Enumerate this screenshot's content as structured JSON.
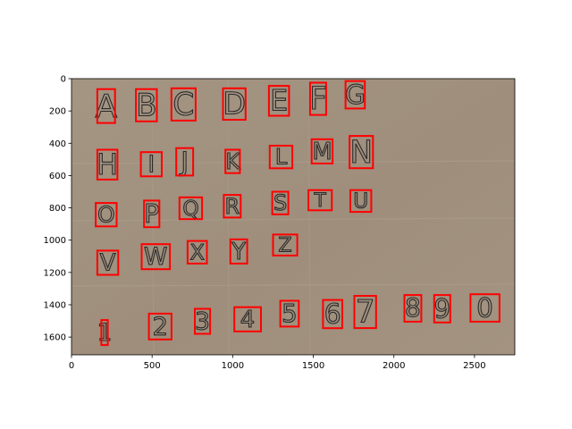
{
  "axes": {
    "x_ticks": [
      "0",
      "500",
      "1000",
      "1500",
      "2000",
      "2500"
    ],
    "y_ticks": [
      "0",
      "200",
      "400",
      "600",
      "800",
      "1000",
      "1200",
      "1400",
      "1600"
    ],
    "xlim": [
      0,
      2750
    ],
    "ylim": [
      1710,
      0
    ]
  },
  "colors": {
    "box": "#ff0000",
    "paper": "#a08f7d",
    "ink": "#2a2a2a"
  },
  "detections": [
    {
      "char": "A",
      "x0": 160,
      "y0": 65,
      "x1": 270,
      "y1": 275
    },
    {
      "char": "B",
      "x0": 400,
      "y0": 65,
      "x1": 530,
      "y1": 265
    },
    {
      "char": "C",
      "x0": 620,
      "y0": 60,
      "x1": 770,
      "y1": 260
    },
    {
      "char": "D",
      "x0": 940,
      "y0": 60,
      "x1": 1080,
      "y1": 255
    },
    {
      "char": "E",
      "x0": 1225,
      "y0": 45,
      "x1": 1350,
      "y1": 230
    },
    {
      "char": "F",
      "x0": 1480,
      "y0": 25,
      "x1": 1580,
      "y1": 225
    },
    {
      "char": "G",
      "x0": 1700,
      "y0": 15,
      "x1": 1820,
      "y1": 185
    },
    {
      "char": "H",
      "x0": 160,
      "y0": 440,
      "x1": 285,
      "y1": 625
    },
    {
      "char": "I",
      "x0": 430,
      "y0": 455,
      "x1": 560,
      "y1": 605
    },
    {
      "char": "J",
      "x0": 650,
      "y0": 430,
      "x1": 755,
      "y1": 600
    },
    {
      "char": "K",
      "x0": 955,
      "y0": 440,
      "x1": 1045,
      "y1": 585
    },
    {
      "char": "L",
      "x0": 1230,
      "y0": 415,
      "x1": 1370,
      "y1": 555
    },
    {
      "char": "M",
      "x0": 1490,
      "y0": 375,
      "x1": 1620,
      "y1": 525
    },
    {
      "char": "N",
      "x0": 1725,
      "y0": 355,
      "x1": 1870,
      "y1": 555
    },
    {
      "char": "O",
      "x0": 150,
      "y0": 770,
      "x1": 280,
      "y1": 915
    },
    {
      "char": "P",
      "x0": 450,
      "y0": 755,
      "x1": 545,
      "y1": 920
    },
    {
      "char": "Q",
      "x0": 670,
      "y0": 735,
      "x1": 810,
      "y1": 870
    },
    {
      "char": "R",
      "x0": 945,
      "y0": 720,
      "x1": 1050,
      "y1": 860
    },
    {
      "char": "S",
      "x0": 1245,
      "y0": 700,
      "x1": 1345,
      "y1": 840
    },
    {
      "char": "T",
      "x0": 1470,
      "y0": 690,
      "x1": 1615,
      "y1": 815
    },
    {
      "char": "U",
      "x0": 1730,
      "y0": 690,
      "x1": 1860,
      "y1": 825
    },
    {
      "char": "V",
      "x0": 160,
      "y0": 1065,
      "x1": 290,
      "y1": 1215
    },
    {
      "char": "W",
      "x0": 435,
      "y0": 1025,
      "x1": 610,
      "y1": 1180
    },
    {
      "char": "X",
      "x0": 720,
      "y0": 1005,
      "x1": 840,
      "y1": 1145
    },
    {
      "char": "Y",
      "x0": 985,
      "y0": 995,
      "x1": 1090,
      "y1": 1145
    },
    {
      "char": "Z",
      "x0": 1250,
      "y0": 965,
      "x1": 1400,
      "y1": 1095
    },
    {
      "char": "1",
      "x0": 185,
      "y0": 1495,
      "x1": 225,
      "y1": 1650
    },
    {
      "char": "2",
      "x0": 480,
      "y0": 1455,
      "x1": 620,
      "y1": 1615
    },
    {
      "char": "3",
      "x0": 765,
      "y0": 1425,
      "x1": 860,
      "y1": 1580
    },
    {
      "char": "4",
      "x0": 1010,
      "y0": 1415,
      "x1": 1175,
      "y1": 1565
    },
    {
      "char": "5",
      "x0": 1295,
      "y0": 1375,
      "x1": 1410,
      "y1": 1535
    },
    {
      "char": "6",
      "x0": 1560,
      "y0": 1370,
      "x1": 1680,
      "y1": 1545
    },
    {
      "char": "7",
      "x0": 1755,
      "y0": 1345,
      "x1": 1890,
      "y1": 1545
    },
    {
      "char": "8",
      "x0": 2065,
      "y0": 1340,
      "x1": 2170,
      "y1": 1505
    },
    {
      "char": "9",
      "x0": 2250,
      "y0": 1340,
      "x1": 2350,
      "y1": 1510
    },
    {
      "char": "0",
      "x0": 2475,
      "y0": 1335,
      "x1": 2655,
      "y1": 1505
    }
  ]
}
